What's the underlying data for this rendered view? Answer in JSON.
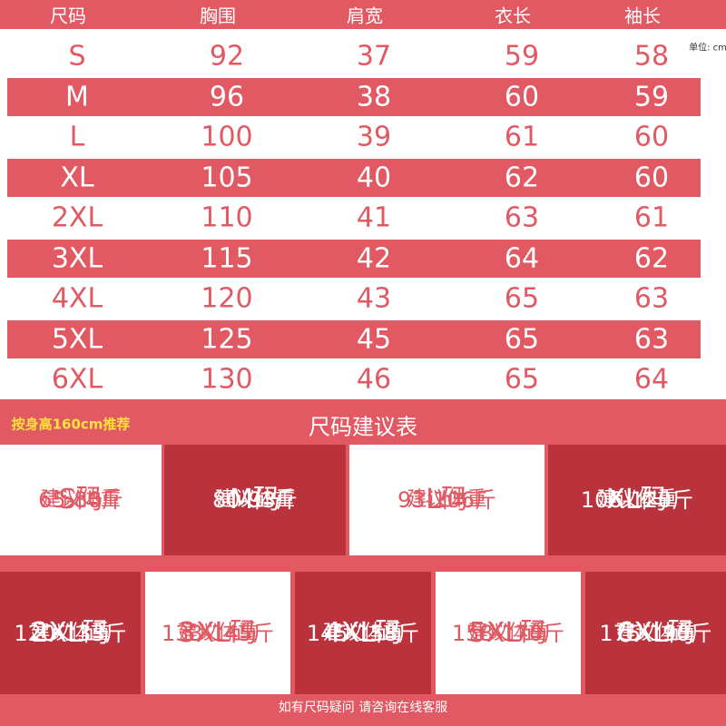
{
  "table": {
    "columns": [
      "尺码",
      "胸围",
      "肩宽",
      "衣长",
      "袖长"
    ],
    "rows": [
      [
        "S",
        "92",
        "37",
        "59",
        "58"
      ],
      [
        "M",
        "96",
        "38",
        "60",
        "59"
      ],
      [
        "L",
        "100",
        "39",
        "61",
        "60"
      ],
      [
        "XL",
        "105",
        "40",
        "62",
        "60"
      ],
      [
        "2XL",
        "110",
        "41",
        "63",
        "61"
      ],
      [
        "3XL",
        "115",
        "42",
        "64",
        "62"
      ],
      [
        "4XL",
        "120",
        "43",
        "65",
        "63"
      ],
      [
        "5XL",
        "125",
        "45",
        "65",
        "63"
      ],
      [
        "6XL",
        "130",
        "46",
        "65",
        "64"
      ]
    ],
    "unit": "单位: cm"
  },
  "recommend": {
    "note": "按身高160cm推荐",
    "title": "尺码建议表",
    "cards": [
      {
        "size": "S码",
        "label": "建议体重",
        "range": "65-80斤"
      },
      {
        "size": "M码",
        "label": "建议体重",
        "range": "80-93斤"
      },
      {
        "size": "L码",
        "label": "建议体重",
        "range": "93-106斤"
      },
      {
        "size": "XL码",
        "label": "建议体重",
        "range": "106-120斤"
      },
      {
        "size": "2XL码",
        "label": "建议体重",
        "range": "120-133斤"
      },
      {
        "size": "3XL码",
        "label": "建议体重",
        "range": "133-145斤"
      },
      {
        "size": "4XL码",
        "label": "建议体重",
        "range": "145-158斤"
      },
      {
        "size": "5XL码",
        "label": "建议体重",
        "range": "158-170斤"
      },
      {
        "size": "6XL码",
        "label": "建议体重",
        "range": "175-190斤"
      }
    ]
  },
  "footer": "如有尺码疑问 请咨询在线客服"
}
